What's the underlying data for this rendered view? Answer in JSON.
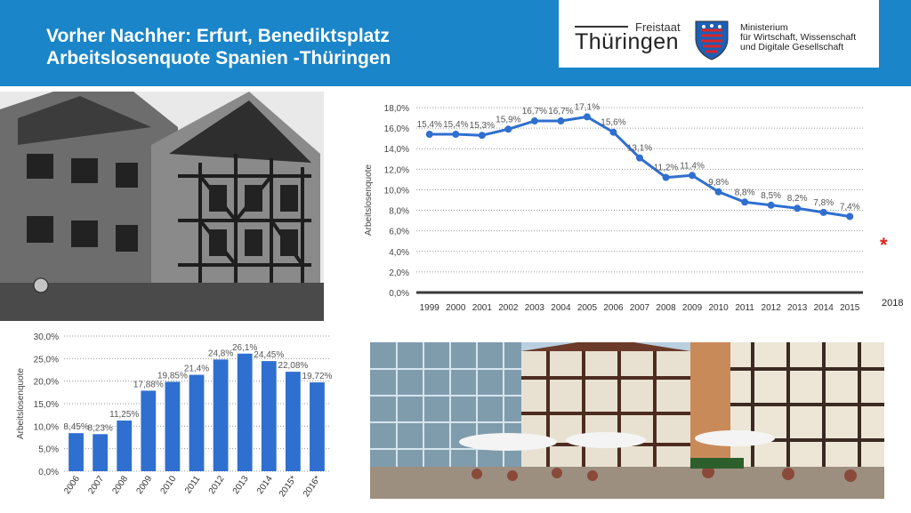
{
  "header": {
    "title_line1": "Vorher Nachher: Erfurt, Benediktsplatz",
    "title_line2": "Arbeitslosenquote Spanien -Thüringen",
    "logo": {
      "freistaat": "Freistaat",
      "land": "Thüringen",
      "ministry_line1": "Ministerium",
      "ministry_line2": "für Wirtschaft, Wissenschaft",
      "ministry_line3": "und Digitale Gesellschaft"
    }
  },
  "annotations": {
    "star": "*",
    "year_note": "2018"
  },
  "colors": {
    "header": "#1a85c8",
    "series_blue": "#2f6fcf",
    "star_red": "#e0211f"
  },
  "chart_data": [
    {
      "type": "line",
      "x": [
        "1999",
        "2000",
        "2001",
        "2002",
        "2003",
        "2004",
        "2005",
        "2006",
        "2007",
        "2008",
        "2009",
        "2010",
        "2011",
        "2012",
        "2013",
        "2014",
        "2015"
      ],
      "values": [
        15.4,
        15.4,
        15.3,
        15.9,
        16.7,
        16.7,
        17.1,
        15.6,
        13.1,
        11.2,
        11.4,
        9.8,
        8.8,
        8.5,
        8.2,
        7.8,
        7.4
      ],
      "data_labels": [
        "15,4%",
        "15,4%",
        "15,3%",
        "15,9%",
        "16,7%",
        "16,7%",
        "17,1%",
        "15,6%",
        "13,1%",
        "11,2%",
        "11,4%",
        "9,8%",
        "8,8%",
        "8,5%",
        "8,2%",
        "7,8%",
        "7,4%"
      ],
      "ylabel": "Arbeitslosenquote",
      "ylim": [
        0,
        18
      ],
      "yticks": [
        "0,0%",
        "2,0%",
        "4,0%",
        "6,0%",
        "8,0%",
        "10,0%",
        "12,0%",
        "14,0%",
        "16,0%",
        "18,0%"
      ],
      "grid": true
    },
    {
      "type": "bar",
      "categories": [
        "2006",
        "2007",
        "2008",
        "2009",
        "2010",
        "2011",
        "2012",
        "2013",
        "2014",
        "2015*",
        "2016*"
      ],
      "values": [
        8.45,
        8.23,
        11.25,
        17.88,
        19.85,
        21.4,
        24.8,
        26.1,
        24.45,
        22.08,
        19.72
      ],
      "data_labels": [
        "8,45%",
        "8,23%",
        "11,25%",
        "17,88%",
        "19,85%",
        "21,4%",
        "24,8%",
        "26,1%",
        "24,45%",
        "22,08%",
        "19,72%"
      ],
      "ylabel": "Arbeitslosenquote",
      "ylim": [
        0,
        30
      ],
      "yticks": [
        "0,0%",
        "5,0%",
        "10,0%",
        "15,0%",
        "20,0%",
        "25,0%",
        "30,0%"
      ],
      "grid": true
    }
  ]
}
